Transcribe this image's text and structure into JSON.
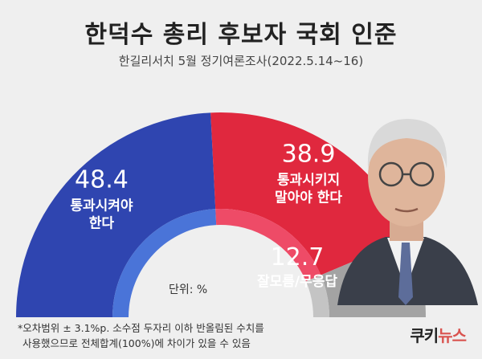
{
  "header": {
    "title": "한덕수 총리 후보자 국회 인준",
    "subtitle": "한길리서치 5월 정기여론조사(2022.5.14~16)"
  },
  "chart_data": {
    "type": "pie",
    "subtype": "semicircle-donut",
    "title": "한덕수 총리 후보자 국회 인준",
    "unit": "%",
    "slices": [
      {
        "label": "통과시켜야 한다",
        "value": 48.4,
        "label_lines": [
          "통과시켜야",
          "한다"
        ],
        "color": "#2f45b0"
      },
      {
        "label": "통과시키지 말아야 한다",
        "value": 38.9,
        "label_lines": [
          "통과시키지",
          "말아야 한다"
        ],
        "color": "#e0283e"
      },
      {
        "label": "잘모름/무응답",
        "value": 12.7,
        "label_lines": [
          "잘모름/무응답"
        ],
        "color": "#a3a3a3"
      }
    ],
    "inner_ring_colors": [
      "#4a74d8",
      "#ee4b67",
      "#c4c4c4"
    ]
  },
  "unit_label": "단위: %",
  "footnote": {
    "line1": "*오차범위 ± 3.1%p. 소수점 두자리 이하 반올림된 수치를",
    "line2": "사용했으므로 전체합계(100%)에 차이가 있을 수 있음"
  },
  "logo": {
    "part1": "쿠키",
    "part2": "뉴스"
  }
}
